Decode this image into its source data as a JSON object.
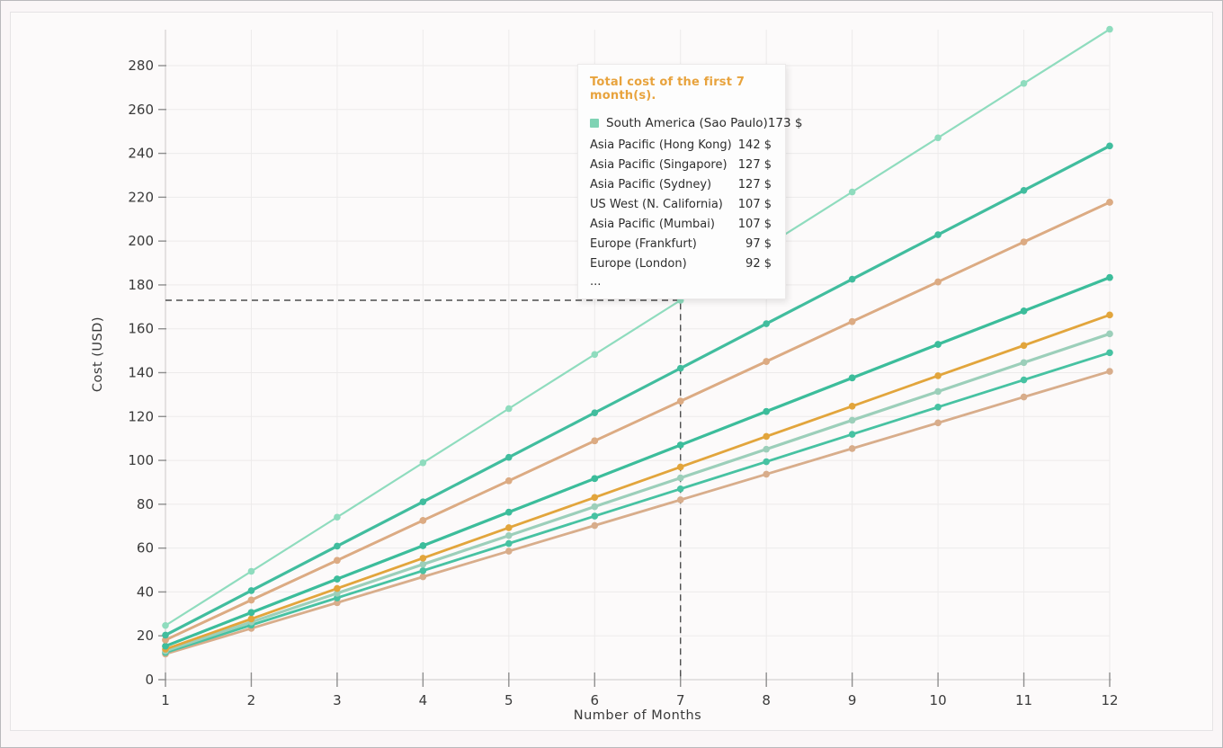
{
  "window": {
    "background": "#faf6f7",
    "panel_background": "#fcfafa",
    "grid_color": "#edebeb",
    "axis_color": "#d6d4d4",
    "tick_color": "#8f8f8f",
    "guide_color": "#4c4c4c",
    "text_color": "#3a3a3a"
  },
  "chart_data": {
    "type": "line",
    "title": "",
    "xlabel": "Number of Months",
    "ylabel": "Cost (USD)",
    "x": [
      1,
      2,
      3,
      4,
      5,
      6,
      7,
      8,
      9,
      10,
      11,
      12
    ],
    "x_tick_labels": [
      "1",
      "2",
      "3",
      "4",
      "5",
      "6",
      "7",
      "8",
      "9",
      "10",
      "11",
      "12"
    ],
    "y_ticks": [
      0,
      20,
      40,
      60,
      80,
      100,
      120,
      140,
      160,
      180,
      200,
      220,
      240,
      260,
      280
    ],
    "ylim": [
      0,
      300
    ],
    "grid": true,
    "legend_position": "tooltip-overlay",
    "guide": {
      "month": 7,
      "value": 173
    },
    "series": [
      {
        "name": "South America (Sao Paulo)",
        "color": "#8fdcbe",
        "values": [
          24.7,
          49.4,
          74.1,
          98.9,
          123.6,
          148.3,
          173,
          197.7,
          222.4,
          247.1,
          271.9,
          296.6
        ]
      },
      {
        "name": "Asia Pacific (Hong Kong)",
        "color": "#41bd9e",
        "values": [
          20.3,
          40.6,
          60.9,
          81.1,
          101.4,
          121.7,
          142,
          162.3,
          182.6,
          202.9,
          223.1,
          243.4
        ]
      },
      {
        "name": "Asia Pacific (Singapore)",
        "color": "#dcab83",
        "values": [
          18.1,
          36.3,
          54.4,
          72.6,
          90.7,
          108.9,
          127,
          145.1,
          163.3,
          181.4,
          199.6,
          217.7
        ]
      },
      {
        "name": "Asia Pacific (Sydney)",
        "color": "#d5a57d",
        "values": [
          18.1,
          36.3,
          54.4,
          72.6,
          90.7,
          108.9,
          127,
          145.1,
          163.3,
          181.4,
          199.6,
          217.7
        ]
      },
      {
        "name": "US West (N. California)",
        "color": "#3cbd9b",
        "values": [
          15.3,
          30.6,
          45.9,
          61.1,
          76.4,
          91.7,
          107,
          122.3,
          137.6,
          152.9,
          168.1,
          183.4
        ]
      },
      {
        "name": "Asia Pacific (Mumbai)",
        "color": "#50b79b",
        "values": [
          15.3,
          30.6,
          45.9,
          61.1,
          76.4,
          91.7,
          107,
          122.3,
          137.6,
          152.9,
          168.1,
          183.4
        ]
      },
      {
        "name": "Europe (Frankfurt)",
        "color": "#e2a53c",
        "values": [
          13.9,
          27.7,
          41.6,
          55.4,
          69.3,
          83.1,
          97,
          110.9,
          124.7,
          138.6,
          152.4,
          166.3
        ]
      },
      {
        "name": "Europe (London)",
        "color": "#9ccfba",
        "values": [
          13.1,
          26.3,
          39.4,
          52.6,
          65.7,
          78.9,
          92,
          105.1,
          118.3,
          131.4,
          144.6,
          157.7
        ]
      },
      {
        "name": "",
        "color": "#47c2a2",
        "values": [
          12.4,
          24.9,
          37.3,
          49.7,
          62.1,
          74.6,
          87,
          99.4,
          111.9,
          124.3,
          136.7,
          149.1
        ]
      },
      {
        "name": "",
        "color": "#d8ad8b",
        "values": [
          11.7,
          23.4,
          35.1,
          46.9,
          58.6,
          70.3,
          82,
          93.7,
          105.4,
          117.1,
          128.9,
          140.6
        ]
      }
    ]
  },
  "tooltip": {
    "title": "Total cost of the first 7 month(s).",
    "title_color": "#e8a33d",
    "rows": [
      {
        "label": "South America (Sao Paulo)",
        "value": "173 $",
        "marker_color": "#7fd3b4",
        "active": true
      },
      {
        "label": "Asia Pacific (Hong Kong)",
        "value": "142 $"
      },
      {
        "label": "Asia Pacific (Singapore)",
        "value": "127 $"
      },
      {
        "label": "Asia Pacific (Sydney)",
        "value": "127 $"
      },
      {
        "label": "US West (N. California)",
        "value": "107 $"
      },
      {
        "label": "Asia Pacific (Mumbai)",
        "value": "107 $"
      },
      {
        "label": "Europe (Frankfurt)",
        "value": "97 $"
      },
      {
        "label": "Europe (London)",
        "value": "92 $"
      },
      {
        "label": "...",
        "value": ""
      }
    ]
  }
}
